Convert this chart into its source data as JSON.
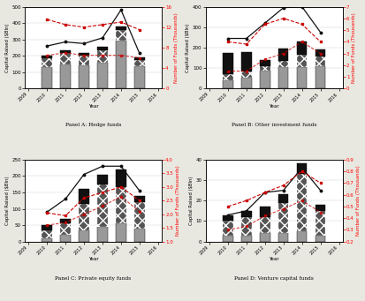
{
  "years_all": [
    2009,
    2010,
    2011,
    2012,
    2013,
    2014,
    2015,
    2016
  ],
  "data_years": [
    2010,
    2011,
    2012,
    2013,
    2014,
    2015
  ],
  "xtick_labels": [
    "2009",
    "2010",
    "2011",
    "2012",
    "2013",
    "2014",
    "2015",
    "2016"
  ],
  "panels": {
    "A": {
      "title": "Panel A: Hedge funds",
      "bar_bottom_gray": [
        130,
        150,
        140,
        160,
        295,
        135
      ],
      "bar_mid_hatch": [
        55,
        65,
        60,
        75,
        65,
        40
      ],
      "bar_top_black": [
        15,
        20,
        15,
        20,
        20,
        15
      ],
      "line_black": [
        260,
        285,
        275,
        310,
        480,
        215
      ],
      "line_red_hi": [
        13.5,
        12.5,
        12.0,
        12.5,
        13.0,
        11.5
      ],
      "line_red_lo": [
        6.5,
        7.0,
        6.5,
        6.5,
        6.5,
        6.0
      ],
      "ylim_left": [
        0,
        500
      ],
      "ylim_right": [
        0,
        16
      ],
      "yticks_left": [
        0,
        100,
        200,
        300,
        400,
        500
      ],
      "yticks_right": [
        0,
        4,
        8,
        12,
        16
      ],
      "ylabel_left": "Capital Raised ($Bln)",
      "ylabel_right": "Number of Funds (Thousands)"
    },
    "B": {
      "title": "Panel B: Other investment funds",
      "bar_bottom_gray": [
        40,
        55,
        90,
        105,
        105,
        110
      ],
      "bar_mid_hatch": [
        30,
        30,
        20,
        30,
        60,
        45
      ],
      "bar_top_black": [
        105,
        95,
        30,
        60,
        65,
        35
      ],
      "line_black": [
        245,
        245,
        320,
        395,
        400,
        275
      ],
      "line_red_hi": [
        4.0,
        3.8,
        5.5,
        6.0,
        5.5,
        4.0
      ],
      "line_red_lo": [
        1.5,
        1.5,
        2.5,
        3.0,
        4.0,
        3.0
      ],
      "ylim_left": [
        0,
        400
      ],
      "ylim_right": [
        0,
        7
      ],
      "yticks_left": [
        0,
        100,
        200,
        300,
        400
      ],
      "yticks_right": [
        0,
        1,
        2,
        3,
        4,
        5,
        6,
        7
      ],
      "ylabel_left": "Capital Raised ($Bln)",
      "ylabel_right": "Number of Funds (Thousands)"
    },
    "C": {
      "title": "Panel C: Private equity funds",
      "bar_bottom_gray": [
        10,
        20,
        35,
        45,
        55,
        40
      ],
      "bar_mid_hatch": [
        25,
        35,
        80,
        130,
        110,
        80
      ],
      "bar_top_black": [
        15,
        15,
        45,
        30,
        55,
        20
      ],
      "line_black": [
        90,
        130,
        205,
        230,
        230,
        155
      ],
      "line_red_hi": [
        2.05,
        1.95,
        2.6,
        2.8,
        3.0,
        2.5
      ],
      "line_red_lo": [
        1.6,
        1.7,
        2.0,
        2.3,
        2.65,
        2.1
      ],
      "ylim_left": [
        0,
        250
      ],
      "ylim_right": [
        1.0,
        4.0
      ],
      "yticks_left": [
        0,
        50,
        100,
        150,
        200,
        250
      ],
      "yticks_right": [
        1.0,
        1.5,
        2.0,
        2.5,
        3.0,
        3.5,
        4.0
      ],
      "ylabel_left": "Capital Raised ($Bln)",
      "ylabel_right": "Number of Funds (Thousands)"
    },
    "D": {
      "title": "Panel D: Venture capital funds",
      "bar_bottom_gray": [
        3,
        3,
        4,
        4,
        5,
        3
      ],
      "bar_mid_hatch": [
        7,
        9,
        8,
        15,
        28,
        12
      ],
      "bar_top_black": [
        3,
        3,
        5,
        4,
        5,
        3
      ],
      "line_black": [
        13,
        15,
        24,
        25,
        36,
        25
      ],
      "line_red_hi": [
        0.5,
        0.55,
        0.62,
        0.68,
        0.8,
        0.7
      ],
      "line_red_lo": [
        0.3,
        0.33,
        0.42,
        0.48,
        0.55,
        0.45
      ],
      "ylim_left": [
        0,
        40
      ],
      "ylim_right": [
        0.2,
        0.9
      ],
      "yticks_left": [
        0,
        10,
        20,
        30,
        40
      ],
      "yticks_right": [
        0.2,
        0.3,
        0.4,
        0.5,
        0.6,
        0.7,
        0.8,
        0.9
      ],
      "ylabel_left": "Capital Raised ($Bln)",
      "ylabel_right": "Number of Funds (Thousands)"
    }
  },
  "colors": {
    "bar_gray": "#999999",
    "bar_hatch_face": "#555555",
    "bar_black": "#111111",
    "line_black": "#111111",
    "line_red": "#cc0000",
    "background": "#ffffff",
    "fig_bg": "#e8e8e0"
  },
  "xlabel": "Year"
}
